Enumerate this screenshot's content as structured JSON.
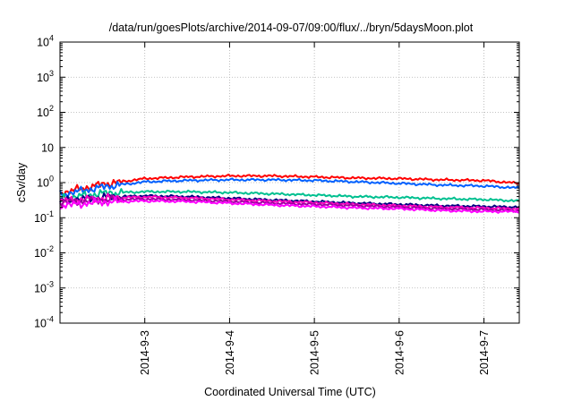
{
  "chart_data": {
    "type": "line",
    "title": "/data/run/goesPlots/archive/2014-09-07/09:00/flux/../bryn/5daysMoon.plot",
    "xlabel": "Coordinated Universal Time (UTC)",
    "ylabel": "cSv/day",
    "xlim": [
      "2014-09-02 00:00",
      "2014-09-07 10:00"
    ],
    "x_ticks": [
      "2014-9-3",
      "2014-9-4",
      "2014-9-5",
      "2014-9-6",
      "2014-9-7"
    ],
    "y_scale": "log",
    "ylim": [
      0.0001,
      10000
    ],
    "y_tick_labels": [
      {
        "base": "10",
        "exp": "4"
      },
      {
        "base": "10",
        "exp": "3"
      },
      {
        "base": "10",
        "exp": "2"
      },
      {
        "base": "10",
        "exp": ""
      },
      {
        "base": "10",
        "exp": "0"
      },
      {
        "base": "10",
        "exp": "-1"
      },
      {
        "base": "10",
        "exp": "-2"
      },
      {
        "base": "10",
        "exp": "-3"
      },
      {
        "base": "10",
        "exp": "-4"
      }
    ],
    "grid": true,
    "x": [
      "2014-09-02 00:00",
      "2014-09-02 12:00",
      "2014-09-03 00:00",
      "2014-09-03 12:00",
      "2014-09-04 00:00",
      "2014-09-04 12:00",
      "2014-09-05 00:00",
      "2014-09-05 12:00",
      "2014-09-06 00:00",
      "2014-09-06 12:00",
      "2014-09-07 00:00",
      "2014-09-07 10:00"
    ],
    "series": [
      {
        "color": "#ff0000",
        "values": [
          0.5,
          0.9,
          1.3,
          1.45,
          1.55,
          1.55,
          1.45,
          1.35,
          1.3,
          1.2,
          1.15,
          0.95
        ]
      },
      {
        "color": "#0060ff",
        "values": [
          0.45,
          0.75,
          1.05,
          1.15,
          1.2,
          1.2,
          1.15,
          1.05,
          0.95,
          0.85,
          0.8,
          0.7
        ]
      },
      {
        "color": "#00c090",
        "values": [
          0.35,
          0.5,
          0.55,
          0.55,
          0.52,
          0.48,
          0.44,
          0.4,
          0.38,
          0.35,
          0.33,
          0.3
        ]
      },
      {
        "color": "#000080",
        "values": [
          0.3,
          0.38,
          0.42,
          0.4,
          0.36,
          0.32,
          0.29,
          0.26,
          0.24,
          0.22,
          0.21,
          0.2
        ]
      },
      {
        "color": "#ff00c0",
        "values": [
          0.3,
          0.36,
          0.39,
          0.37,
          0.33,
          0.3,
          0.27,
          0.24,
          0.22,
          0.2,
          0.19,
          0.18
        ]
      },
      {
        "color": "#a000a0",
        "values": [
          0.27,
          0.32,
          0.34,
          0.32,
          0.29,
          0.26,
          0.24,
          0.22,
          0.2,
          0.18,
          0.17,
          0.16
        ]
      },
      {
        "color": "#ff00ff",
        "values": [
          0.22,
          0.28,
          0.3,
          0.29,
          0.26,
          0.23,
          0.21,
          0.19,
          0.18,
          0.16,
          0.15,
          0.15
        ]
      }
    ]
  }
}
